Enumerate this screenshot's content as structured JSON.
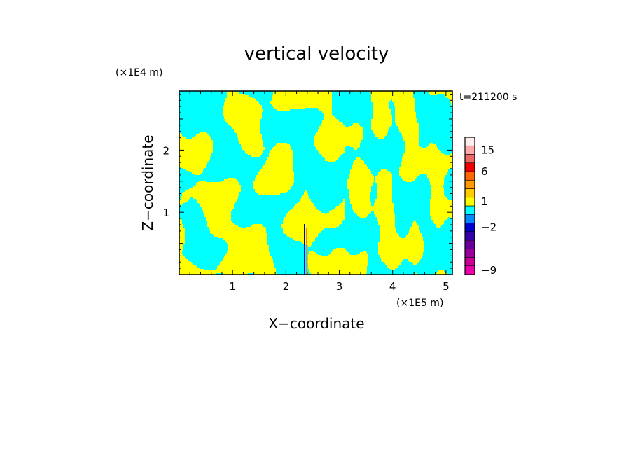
{
  "chart_data": {
    "type": "heatmap",
    "title": "vertical velocity",
    "xlabel": "X−coordinate",
    "ylabel": "Z−coordinate",
    "x_unit": "(×1E5 m)",
    "y_unit": "(×1E4 m)",
    "time_label": "t=211200 s",
    "xlim": [
      0,
      5.12
    ],
    "ylim": [
      0,
      2.95
    ],
    "x_ticks": [
      1,
      2,
      3,
      4,
      5
    ],
    "y_ticks": [
      1,
      2
    ],
    "colorbar": {
      "levels": [
        {
          "color": "#ee00aa"
        },
        {
          "color": "#cc0099"
        },
        {
          "color": "#990099"
        },
        {
          "color": "#660099"
        },
        {
          "color": "#3300aa"
        },
        {
          "color": "#0000cc"
        },
        {
          "color": "#0088ff"
        },
        {
          "color": "#00ffff"
        },
        {
          "color": "#ffff00"
        },
        {
          "color": "#ffcc00"
        },
        {
          "color": "#ff9900"
        },
        {
          "color": "#ff6600"
        },
        {
          "color": "#ee0000"
        },
        {
          "color": "#ee6666"
        },
        {
          "color": "#ffaaaa"
        },
        {
          "color": "#ffeeee"
        }
      ],
      "labels": [
        {
          "text": "−9",
          "level": 0.5
        },
        {
          "text": "−2",
          "level": 5.5
        },
        {
          "text": "1",
          "level": 8.5
        },
        {
          "text": "6",
          "level": 12
        },
        {
          "text": "15",
          "level": 14.5
        }
      ]
    },
    "colors": {
      "positive": "#ffff00",
      "negative": "#00ffff",
      "updraft_core": "#ff8800",
      "downdraft_core": "#0000cc"
    }
  }
}
